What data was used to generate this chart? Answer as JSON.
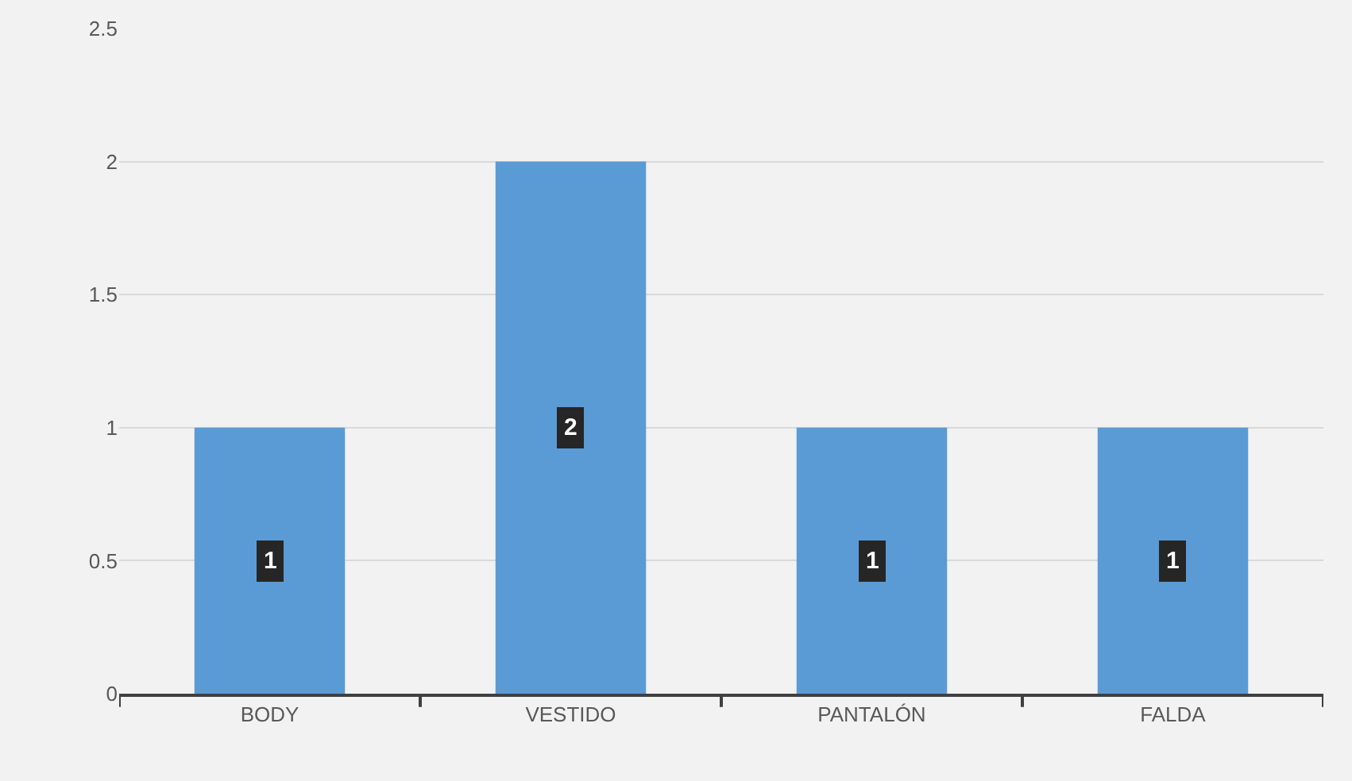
{
  "chart_data": {
    "type": "bar",
    "categories": [
      "BODY",
      "VESTIDO",
      "PANTALÓN",
      "FALDA"
    ],
    "values": [
      1,
      2,
      1,
      1
    ],
    "color": "#5b9bd5",
    "ylim": [
      0,
      2.5
    ],
    "yticks": [
      0,
      0.5,
      1,
      1.5,
      2,
      2.5
    ],
    "grid": "y",
    "data_labels": true,
    "legend": false
  }
}
